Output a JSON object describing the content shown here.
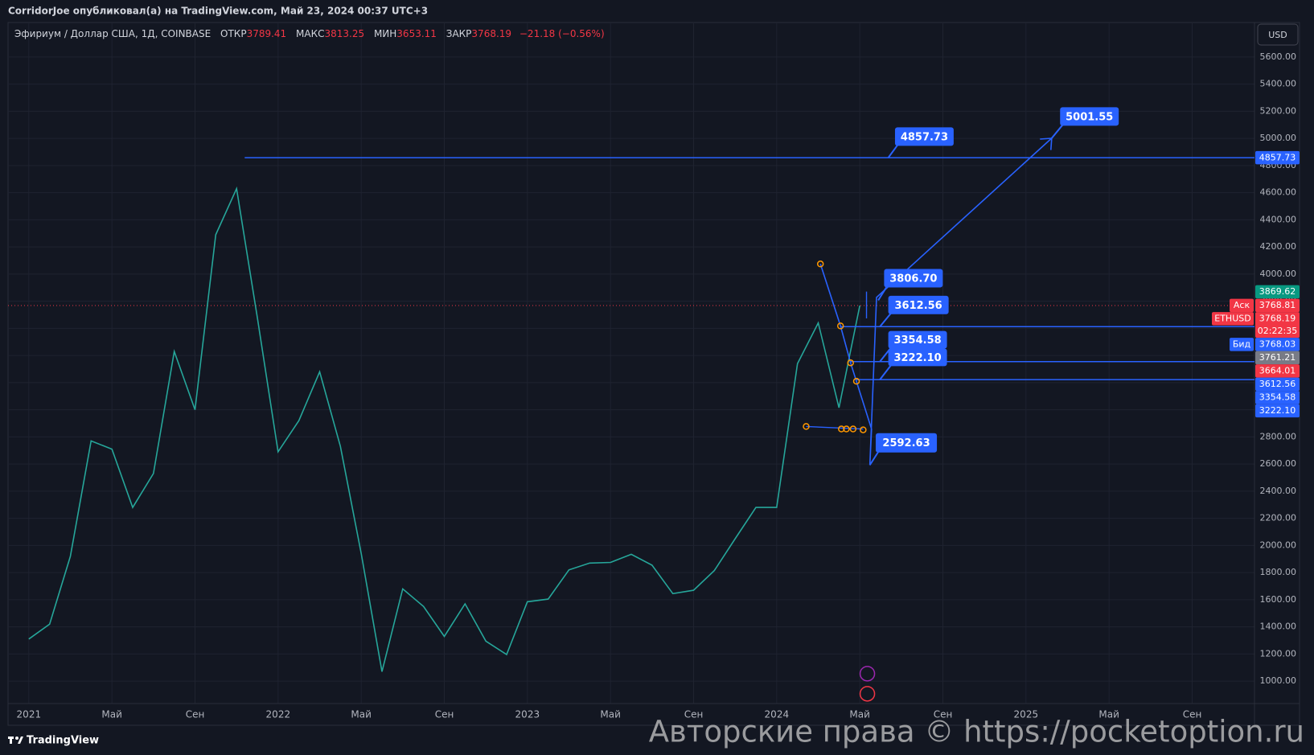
{
  "header": {
    "text": "CorridorJoe опубликовал(а) на TradingView.com, Май 23, 2024 00:37 UTC+3"
  },
  "legend": {
    "symbol": "Эфириум / Доллар США, 1Д, COINBASE",
    "fields": [
      {
        "name": "ОТКР",
        "value": 3789.41
      },
      {
        "name": "МАКС",
        "value": 3813.25
      },
      {
        "name": "МИН",
        "value": 3653.11
      },
      {
        "name": "ЗАКР",
        "value": 3768.19
      }
    ],
    "change": "−21.18 (−0.56%)"
  },
  "currency": "USD",
  "chart_data": {
    "type": "line",
    "color": "#26a69a",
    "x": [
      "2021-01",
      "2021-02",
      "2021-03",
      "2021-04",
      "2021-05",
      "2021-06",
      "2021-07",
      "2021-08",
      "2021-09",
      "2021-10",
      "2021-11",
      "2021-12",
      "2022-01",
      "2022-02",
      "2022-03",
      "2022-04",
      "2022-05",
      "2022-06",
      "2022-07",
      "2022-08",
      "2022-09",
      "2022-10",
      "2022-11",
      "2022-12",
      "2023-01",
      "2023-02",
      "2023-03",
      "2023-04",
      "2023-05",
      "2023-06",
      "2023-07",
      "2023-08",
      "2023-09",
      "2023-10",
      "2023-11",
      "2023-12",
      "2024-01",
      "2024-02",
      "2024-03",
      "2024-04",
      "2024-05"
    ],
    "values": [
      1310,
      1420,
      1920,
      2770,
      2710,
      2280,
      2530,
      3430,
      3000,
      4290,
      4630,
      3680,
      2690,
      2920,
      3280,
      2730,
      1940,
      1070,
      1680,
      1550,
      1330,
      1570,
      1295,
      1196,
      1585,
      1605,
      1820,
      1870,
      1875,
      1935,
      1855,
      1645,
      1670,
      1815,
      2050,
      2280,
      2280,
      3340,
      3640,
      3015,
      3768
    ],
    "xlim": [
      "2020-12",
      "2025-12"
    ],
    "xticks": [
      {
        "value": "2021-01",
        "label": "2021"
      },
      {
        "value": "2021-05",
        "label": "Май"
      },
      {
        "value": "2021-09",
        "label": "Сен"
      },
      {
        "value": "2022-01",
        "label": "2022"
      },
      {
        "value": "2022-05",
        "label": "Май"
      },
      {
        "value": "2022-09",
        "label": "Сен"
      },
      {
        "value": "2023-01",
        "label": "2023"
      },
      {
        "value": "2023-05",
        "label": "Май"
      },
      {
        "value": "2023-09",
        "label": "Сен"
      },
      {
        "value": "2024-01",
        "label": "2024"
      },
      {
        "value": "2024-05",
        "label": "Май"
      },
      {
        "value": "2024-09",
        "label": "Сен"
      },
      {
        "value": "2025-01",
        "label": "2025"
      },
      {
        "value": "2025-05",
        "label": "Май"
      },
      {
        "value": "2025-09",
        "label": "Сен"
      }
    ],
    "ylim": [
      835,
      5848
    ],
    "yticks": [
      {
        "value": 1000,
        "label": "1000.00"
      },
      {
        "value": 1200,
        "label": "1200.00"
      },
      {
        "value": 1400,
        "label": "1400.00"
      },
      {
        "value": 1600,
        "label": "1600.00"
      },
      {
        "value": 1800,
        "label": "1800.00"
      },
      {
        "value": 2000,
        "label": "2000.00"
      },
      {
        "value": 2200,
        "label": "2200.00"
      },
      {
        "value": 2400,
        "label": "2400.00"
      },
      {
        "value": 2600,
        "label": "2600.00"
      },
      {
        "value": 2800,
        "label": "2800.00"
      },
      {
        "value": 3000,
        "label": "3000.00"
      },
      {
        "value": 3200,
        "label": "3200.00"
      },
      {
        "value": 3400,
        "label": "3400.00"
      },
      {
        "value": 3600,
        "label": "3600.00"
      },
      {
        "value": 3800,
        "label": "3800.00"
      },
      {
        "value": 4000,
        "label": "4000.00"
      },
      {
        "value": 4200,
        "label": "4200.00"
      },
      {
        "value": 4400,
        "label": "4400.00"
      },
      {
        "value": 4600,
        "label": "4600.00"
      },
      {
        "value": 4800,
        "label": "4800.00"
      },
      {
        "value": 5000,
        "label": "5000.00"
      },
      {
        "value": 5200,
        "label": "5200.00"
      },
      {
        "value": 5400,
        "label": "5400.00"
      },
      {
        "value": 5600,
        "label": "5600.00"
      }
    ],
    "grid": true,
    "level_color": "#2962ff",
    "levels": [
      {
        "value": 4857.73,
        "label": "4857.73"
      },
      {
        "value": 3612.56,
        "label": "3612.56"
      },
      {
        "value": 3354.58,
        "label": "3354.58"
      },
      {
        "value": 3222.1,
        "label": "3222.10"
      }
    ],
    "targets": [
      {
        "value": 5001.55,
        "label": "5001.55"
      },
      {
        "value": 3806.7,
        "label": "3806.70"
      },
      {
        "value": 2592.63,
        "label": "2592.63"
      }
    ],
    "price_labels": [
      {
        "value": 3869.62,
        "label": "3869.62",
        "color": "#089981"
      },
      {
        "tag": "Аск",
        "value": 3768.81,
        "label": "3768.81",
        "color": "#f23645"
      },
      {
        "tag": "ETHUSD",
        "value": 3768.19,
        "label": "3768.19",
        "countdown": "02:22:35",
        "color": "#f23645"
      },
      {
        "tag": "Бид",
        "value": 3768.03,
        "label": "3768.03",
        "color": "#2962ff"
      },
      {
        "value": 3761.21,
        "label": "3761.21",
        "color": "#787b86"
      },
      {
        "value": 3664.01,
        "label": "3664.01",
        "color": "#f23645"
      }
    ]
  },
  "footer": {
    "logo": "TradingView",
    "watermark": "Авторские права © https://pocketoption.ru"
  }
}
